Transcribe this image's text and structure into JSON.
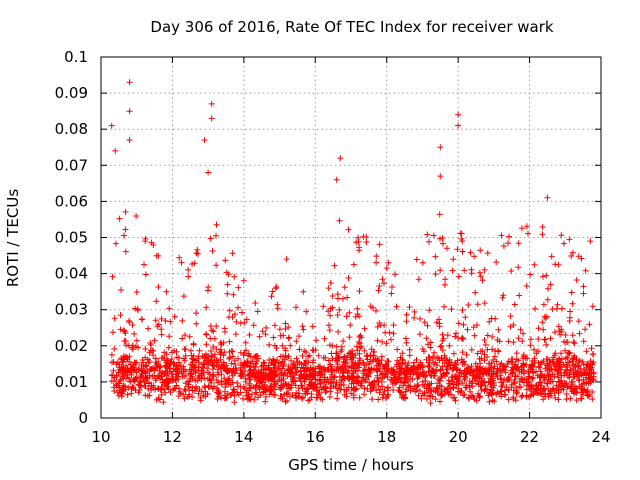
{
  "chart_data": {
    "type": "scatter",
    "title": "Day 306 of 2016, Rate Of TEC Index for receiver wark",
    "xlabel": "GPS time / hours",
    "ylabel": "ROTI / TECUs",
    "xlim": [
      10,
      24
    ],
    "ylim": [
      0,
      0.1
    ],
    "xticks": [
      10,
      12,
      14,
      16,
      18,
      20,
      22,
      24
    ],
    "xtick_labels": [
      "10",
      "12",
      "14",
      "16",
      "18",
      "20",
      "22",
      "24"
    ],
    "yticks": [
      0,
      0.01,
      0.02,
      0.03,
      0.04,
      0.05,
      0.06,
      0.07,
      0.08,
      0.09,
      0.1
    ],
    "ytick_labels": [
      "0",
      "0.01",
      "0.02",
      "0.03",
      "0.04",
      "0.05",
      "0.06",
      "0.07",
      "0.08",
      "0.09",
      "0.1"
    ],
    "grid": true,
    "marker": "+",
    "color": "#ff0000",
    "x_range_of_data": [
      10.3,
      23.8
    ],
    "series": [
      {
        "name": "ROTI",
        "notable_points": [
          {
            "x": 10.3,
            "y": 0.081
          },
          {
            "x": 10.8,
            "y": 0.093
          },
          {
            "x": 10.8,
            "y": 0.085
          },
          {
            "x": 10.8,
            "y": 0.077
          },
          {
            "x": 10.4,
            "y": 0.074
          },
          {
            "x": 12.9,
            "y": 0.077
          },
          {
            "x": 13.1,
            "y": 0.087
          },
          {
            "x": 13.1,
            "y": 0.083
          },
          {
            "x": 13.0,
            "y": 0.068
          },
          {
            "x": 16.7,
            "y": 0.072
          },
          {
            "x": 16.6,
            "y": 0.066
          },
          {
            "x": 19.5,
            "y": 0.075
          },
          {
            "x": 19.5,
            "y": 0.067
          },
          {
            "x": 20.0,
            "y": 0.084
          },
          {
            "x": 20.0,
            "y": 0.081
          },
          {
            "x": 22.5,
            "y": 0.061
          },
          {
            "x": 23.7,
            "y": 0.049
          }
        ],
        "activity_profile": [
          {
            "x": 10.3,
            "typical": 0.012,
            "envelope": 0.06
          },
          {
            "x": 10.8,
            "typical": 0.013,
            "envelope": 0.062
          },
          {
            "x": 11.5,
            "typical": 0.012,
            "envelope": 0.048
          },
          {
            "x": 12.0,
            "typical": 0.013,
            "envelope": 0.055
          },
          {
            "x": 12.5,
            "typical": 0.012,
            "envelope": 0.042
          },
          {
            "x": 13.1,
            "typical": 0.014,
            "envelope": 0.06
          },
          {
            "x": 13.8,
            "typical": 0.012,
            "envelope": 0.048
          },
          {
            "x": 14.5,
            "typical": 0.011,
            "envelope": 0.028
          },
          {
            "x": 15.3,
            "typical": 0.012,
            "envelope": 0.048
          },
          {
            "x": 16.0,
            "typical": 0.011,
            "envelope": 0.035
          },
          {
            "x": 16.7,
            "typical": 0.014,
            "envelope": 0.058
          },
          {
            "x": 17.5,
            "typical": 0.013,
            "envelope": 0.052
          },
          {
            "x": 18.5,
            "typical": 0.012,
            "envelope": 0.04
          },
          {
            "x": 19.5,
            "typical": 0.013,
            "envelope": 0.058
          },
          {
            "x": 20.0,
            "typical": 0.013,
            "envelope": 0.052
          },
          {
            "x": 20.5,
            "typical": 0.012,
            "envelope": 0.048
          },
          {
            "x": 21.5,
            "typical": 0.012,
            "envelope": 0.052
          },
          {
            "x": 22.5,
            "typical": 0.013,
            "envelope": 0.055
          },
          {
            "x": 23.3,
            "typical": 0.012,
            "envelope": 0.048
          },
          {
            "x": 23.8,
            "typical": 0.011,
            "envelope": 0.04
          }
        ],
        "approx_point_count": 2600
      }
    ]
  }
}
